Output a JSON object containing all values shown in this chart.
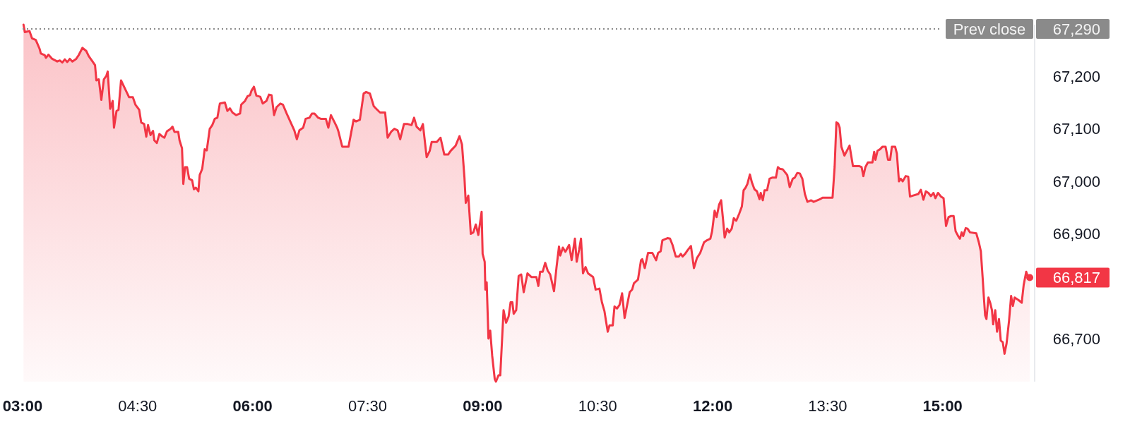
{
  "chart_data": {
    "type": "area",
    "x": [
      3.012,
      3.029,
      3.09,
      3.123,
      3.172,
      3.222,
      3.238,
      3.288,
      3.304,
      3.337,
      3.386,
      3.452,
      3.485,
      3.518,
      3.551,
      3.583,
      3.616,
      3.649,
      3.699,
      3.731,
      3.781,
      3.83,
      3.863,
      3.912,
      3.945,
      3.962,
      3.994,
      4.027,
      4.06,
      4.093,
      4.11,
      4.142,
      4.175,
      4.192,
      4.225,
      4.251,
      4.284,
      4.323,
      4.356,
      4.389,
      4.438,
      4.471,
      4.521,
      4.547,
      4.586,
      4.613,
      4.636,
      4.668,
      4.701,
      4.718,
      4.751,
      4.784,
      4.816,
      4.849,
      4.882,
      4.932,
      4.955,
      4.981,
      5.03,
      5.047,
      5.079,
      5.096,
      5.119,
      5.145,
      5.172,
      5.211,
      5.234,
      5.26,
      5.293,
      5.31,
      5.343,
      5.375,
      5.402,
      5.441,
      5.474,
      5.507,
      5.54,
      5.573,
      5.638,
      5.671,
      5.704,
      5.737,
      5.786,
      5.836,
      5.852,
      5.901,
      5.934,
      5.967,
      5.984,
      6.017,
      6.049,
      6.099,
      6.132,
      6.181,
      6.214,
      6.247,
      6.28,
      6.312,
      6.362,
      6.395,
      6.444,
      6.544,
      6.577,
      6.61,
      6.659,
      6.692,
      6.741,
      6.774,
      6.807,
      6.856,
      6.889,
      6.955,
      6.988,
      7.021,
      7.07,
      7.103,
      7.119,
      7.169,
      7.251,
      7.317,
      7.35,
      7.399,
      7.448,
      7.481,
      7.53,
      7.58,
      7.613,
      7.662,
      7.728,
      7.761,
      7.81,
      7.849,
      7.892,
      7.925,
      7.974,
      8.024,
      8.073,
      8.106,
      8.139,
      8.188,
      8.221,
      8.27,
      8.31,
      8.336,
      8.402,
      8.451,
      8.5,
      8.55,
      8.583,
      8.616,
      8.648,
      8.698,
      8.731,
      8.763,
      8.78,
      8.813,
      8.846,
      8.879,
      8.911,
      8.944,
      8.987,
      9.0,
      9.027,
      9.036,
      9.053,
      9.076,
      9.099,
      9.125,
      9.158,
      9.174,
      9.207,
      9.23,
      9.273,
      9.306,
      9.339,
      9.365,
      9.388,
      9.405,
      9.438,
      9.47,
      9.503,
      9.536,
      9.585,
      9.635,
      9.701,
      9.727,
      9.75,
      9.783,
      9.816,
      9.849,
      9.881,
      9.931,
      9.964,
      9.996,
      10.013,
      10.046,
      10.079,
      10.128,
      10.161,
      10.204,
      10.227,
      10.26,
      10.283,
      10.309,
      10.342,
      10.375,
      10.441,
      10.474,
      10.523,
      10.556,
      10.589,
      10.605,
      10.632,
      10.655,
      10.697,
      10.72,
      10.753,
      10.786,
      10.819,
      10.852,
      10.885,
      10.918,
      10.95,
      10.973,
      11.026,
      11.066,
      11.082,
      11.115,
      11.158,
      11.213,
      11.263,
      11.289,
      11.322,
      11.345,
      11.411,
      11.444,
      11.477,
      11.519,
      11.559,
      11.585,
      11.608,
      11.641,
      11.674,
      11.717,
      11.756,
      11.795,
      11.838,
      11.888,
      11.927,
      11.97,
      11.993,
      12.026,
      12.052,
      12.085,
      12.111,
      12.134,
      12.157,
      12.19,
      12.216,
      12.249,
      12.276,
      12.308,
      12.348,
      12.381,
      12.404,
      12.43,
      12.453,
      12.486,
      12.512,
      12.545,
      12.578,
      12.611,
      12.627,
      12.654,
      12.677,
      12.71,
      12.742,
      12.775,
      12.825,
      12.851,
      12.874,
      12.913,
      12.946,
      12.973,
      13.005,
      13.045,
      13.071,
      13.104,
      13.137,
      13.17,
      13.203,
      13.236,
      13.285,
      13.318,
      13.367,
      13.4,
      13.433,
      13.564,
      13.591,
      13.614,
      13.637,
      13.657,
      13.679,
      13.719,
      13.786,
      13.83,
      13.91,
      13.943,
      13.966,
      13.992,
      14.025,
      14.084,
      14.107,
      14.124,
      14.15,
      14.183,
      14.216,
      14.255,
      14.288,
      14.315,
      14.338,
      14.38,
      14.403,
      14.43,
      14.453,
      14.479,
      14.518,
      14.551,
      14.574,
      14.617,
      14.683,
      14.716,
      14.749,
      14.781,
      14.814,
      14.847,
      14.88,
      14.906,
      14.939,
      14.979,
      15.012,
      15.044,
      15.077,
      15.11,
      15.143,
      15.169,
      15.202,
      15.225,
      15.248,
      15.268,
      15.301,
      15.324,
      15.357,
      15.439,
      15.472,
      15.498,
      15.521,
      15.538,
      15.554,
      15.571,
      15.597,
      15.62,
      15.643,
      15.659,
      15.686,
      15.709,
      15.735,
      15.758,
      15.784,
      15.807,
      15.834,
      15.866,
      15.893,
      15.916,
      15.939,
      15.991,
      16.031,
      16.057,
      16.09,
      16.113,
      16.136
    ],
    "series": [
      {
        "color": "#f23645",
        "values": [
          67298,
          67284,
          67286,
          67272,
          67269,
          67252,
          67243,
          67240,
          67235,
          67241,
          67233,
          67228,
          67230,
          67226,
          67232,
          67227,
          67233,
          67228,
          67233,
          67240,
          67254,
          67248,
          67238,
          67228,
          67221,
          67192,
          67194,
          67155,
          67194,
          67201,
          67209,
          67138,
          67153,
          67102,
          67134,
          67136,
          67192,
          67180,
          67170,
          67160,
          67160,
          67146,
          67136,
          67112,
          67109,
          67085,
          67107,
          67088,
          67096,
          67078,
          67073,
          67090,
          67086,
          67083,
          67095,
          67100,
          67104,
          67094,
          67094,
          67078,
          67063,
          66995,
          67027,
          67027,
          67005,
          67002,
          66985,
          66988,
          66981,
          67012,
          67024,
          67061,
          67059,
          67100,
          67107,
          67119,
          67121,
          67148,
          67150,
          67134,
          67139,
          67131,
          67126,
          67129,
          67146,
          67153,
          67162,
          67164,
          67172,
          67180,
          67163,
          67161,
          67148,
          67153,
          67165,
          67164,
          67126,
          67141,
          67148,
          67146,
          67129,
          67097,
          67080,
          67097,
          67102,
          67119,
          67121,
          67129,
          67129,
          67121,
          67119,
          67119,
          67102,
          67126,
          67112,
          67102,
          67095,
          67066,
          67066,
          67117,
          67114,
          67117,
          67167,
          67170,
          67167,
          67143,
          67138,
          67131,
          67131,
          67083,
          67095,
          67100,
          67097,
          67080,
          67109,
          67109,
          67107,
          67121,
          67104,
          67097,
          67109,
          67046,
          67058,
          67075,
          67075,
          67083,
          67051,
          67051,
          67058,
          67063,
          67068,
          67086,
          67070,
          67007,
          66959,
          66973,
          66900,
          66903,
          66918,
          66898,
          66942,
          66862,
          66847,
          66794,
          66808,
          66701,
          66716,
          66668,
          66624,
          66619,
          66631,
          66631,
          66755,
          66731,
          66743,
          66770,
          66770,
          66748,
          66755,
          66820,
          66823,
          66789,
          66825,
          66818,
          66818,
          66801,
          66828,
          66828,
          66845,
          66830,
          66823,
          66791,
          66837,
          66876,
          66859,
          66874,
          66866,
          66879,
          66850,
          66891,
          66847,
          66871,
          66891,
          66825,
          66837,
          66825,
          66818,
          66794,
          66796,
          66770,
          66753,
          66738,
          66714,
          66726,
          66726,
          66762,
          66758,
          66765,
          66787,
          66740,
          66765,
          66789,
          66794,
          66806,
          66813,
          66850,
          66852,
          66835,
          66864,
          66864,
          66850,
          66864,
          66867,
          66888,
          66892,
          66891,
          66879,
          66857,
          66857,
          66862,
          66857,
          66862,
          66869,
          66877,
          66835,
          66854,
          66864,
          66884,
          66888,
          66891,
          66905,
          66944,
          66932,
          66956,
          66964,
          66930,
          66893,
          66910,
          66903,
          66910,
          66930,
          66925,
          66939,
          66952,
          66983,
          66988,
          66995,
          67013,
          66998,
          66985,
          66981,
          66966,
          66978,
          66964,
          66983,
          66983,
          67005,
          67007,
          67007,
          67027,
          67024,
          67023,
          67017,
          67012,
          66989,
          67005,
          67007,
          67016,
          67015,
          67005,
          66976,
          66961,
          66964,
          66961,
          66964,
          66966,
          66969,
          66969,
          67027,
          67112,
          67110,
          67102,
          67066,
          67049,
          67068,
          67029,
          67029,
          67027,
          67010,
          67027,
          67036,
          67036,
          67056,
          67041,
          67058,
          67061,
          67066,
          67066,
          67041,
          67041,
          67066,
          67066,
          67053,
          67000,
          67005,
          67000,
          67010,
          67009,
          66971,
          66973,
          66976,
          66984,
          66965,
          66981,
          66978,
          66972,
          66978,
          66968,
          66978,
          66971,
          66968,
          66915,
          66932,
          66934,
          66934,
          66905,
          66896,
          66891,
          66903,
          66896,
          66911,
          66910,
          66903,
          66901,
          66884,
          66867,
          66818,
          66779,
          66745,
          66738,
          66779,
          66769,
          66755,
          66728,
          66755,
          66714,
          66738,
          66697,
          66694,
          66672,
          66692,
          66735,
          66782,
          66763,
          66779,
          66774,
          66769,
          66803,
          66828,
          66818,
          66817
        ]
      }
    ],
    "xlim": [
      3,
      16.2
    ],
    "xticks": [
      {
        "value": 3,
        "label": "03:00"
      },
      {
        "value": 4.5,
        "label": "04:30"
      },
      {
        "value": 6,
        "label": "06:00"
      },
      {
        "value": 7.5,
        "label": "07:30"
      },
      {
        "value": 9,
        "label": "09:00"
      },
      {
        "value": 10.5,
        "label": "10:30"
      },
      {
        "value": 12,
        "label": "12:00"
      },
      {
        "value": 13.5,
        "label": "13:30"
      },
      {
        "value": 15,
        "label": "15:00"
      }
    ],
    "ylim": [
      66619,
      67298
    ],
    "yticks": [
      {
        "value": 66700,
        "label": "66,700"
      },
      {
        "value": 66900,
        "label": "66,900"
      },
      {
        "value": 67000,
        "label": "67,000"
      },
      {
        "value": 67100,
        "label": "67,100"
      },
      {
        "value": 67200,
        "label": "67,200"
      }
    ],
    "ref_lines": [
      {
        "axis": "y",
        "value": 67290,
        "label": "Prev close",
        "color": "#8a8a8a",
        "line_style": "dotted"
      }
    ],
    "annotations": [
      "67,290",
      {
        "text": "66,817",
        "x": 16.136,
        "y": 66817
      }
    ]
  }
}
